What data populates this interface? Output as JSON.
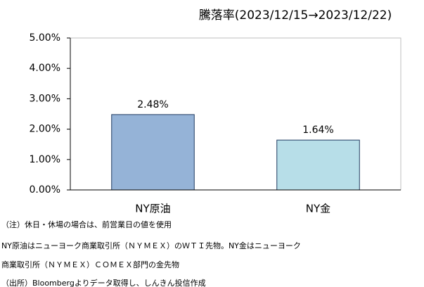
{
  "chart_data": {
    "type": "bar",
    "title": "騰落率(2023/12/15→2023/12/22)",
    "categories": [
      "NY原油",
      "NY金"
    ],
    "values": [
      2.48,
      1.64
    ],
    "value_labels": [
      "2.48%",
      "1.64%"
    ],
    "colors": [
      "#95b3d7",
      "#b7dee8"
    ],
    "ylim": [
      0,
      5
    ],
    "yticks": [
      {
        "value": 0,
        "label": "0.00%"
      },
      {
        "value": 1,
        "label": "1.00%"
      },
      {
        "value": 2,
        "label": "2.00%"
      },
      {
        "value": 3,
        "label": "3.00%"
      },
      {
        "value": 4,
        "label": "4.00%"
      },
      {
        "value": 5,
        "label": "5.00%"
      }
    ],
    "notes": [
      "（注）休日・休場の場合は、前営業日の値を使用",
      "NY原油はニューヨーク商業取引所（ＮＹＭＥＸ）のＷＴＩ先物。NY金はニューヨーク",
      "商業取引所（ＮＹＭＥＸ）ＣＯＭＥＸ部門の金先物",
      "（出所）Bloombergよりデータ取得し、しんきん投信作成"
    ]
  }
}
